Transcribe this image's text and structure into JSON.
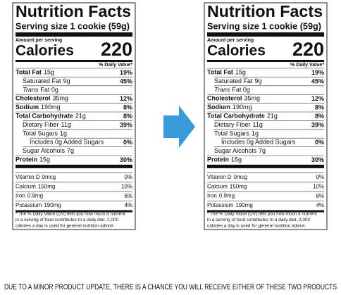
{
  "labels": [
    {
      "title": "Nutrition Facts",
      "serving": "Serving size 1 cookie (59g)",
      "amount_per_serving": "Amount per serving",
      "calories_label": "Calories",
      "calories": "220",
      "dv_header": "% Daily Value*",
      "nutrients": [
        {
          "name": "Total Fat",
          "amount": "15g",
          "dv": "19%",
          "sub": [
            {
              "name": "Saturated Fat",
              "amount": "9g",
              "dv": "45%"
            },
            {
              "italic": "Trans",
              "amount": "Fat 0g"
            }
          ]
        },
        {
          "name": "Cholesterol",
          "amount": "35mg",
          "dv": "12%"
        },
        {
          "name": "Sodium",
          "amount": "190mg",
          "dv": "8%"
        },
        {
          "name": "Total Carbohydrate",
          "amount": "21g",
          "dv": "8%",
          "sub": [
            {
              "name": "Dietary Fiber",
              "amount": "11g",
              "dv": "39%"
            },
            {
              "name": "Total Sugars",
              "amount": "1g",
              "sub": [
                {
                  "name": "Includes 0g Added Sugars",
                  "dv": "0%"
                }
              ]
            },
            {
              "name": "Sugar Alcohols",
              "amount": "7g"
            }
          ]
        },
        {
          "name": "Protein",
          "amount": "15g",
          "dv": "30%"
        }
      ],
      "micronutrients": [
        {
          "name": "Vitamin D",
          "amount": "0mcg",
          "dv": "0%"
        },
        {
          "name": "Calcium",
          "amount": "150mg",
          "dv": "10%"
        },
        {
          "name": "Iron",
          "amount": "0.9mg",
          "dv": "6%"
        },
        {
          "name": "Potassium",
          "amount": "190mg",
          "dv": "4%"
        }
      ],
      "footnote": [
        "* The % Daily Value (DV) tells you how much a nutrient",
        "in a serving of food contributes to a daily diet. 2,000",
        "calories a day is used for general nutrition advice."
      ]
    },
    {
      "title": "Nutrition Facts",
      "serving": "Serving size 1 cookie (59g)",
      "amount_per_serving": "Amount per serving",
      "calories_label": "Calories",
      "calories": "220",
      "dv_header": "% Daily Value*",
      "nutrients": [
        {
          "name": "Total Fat",
          "amount": "15g",
          "dv": "19%",
          "sub": [
            {
              "name": "Saturated Fat",
              "amount": "9g",
              "dv": "45%"
            },
            {
              "italic": "Trans",
              "amount": "Fat 0g"
            }
          ]
        },
        {
          "name": "Cholesterol",
          "amount": "35mg",
          "dv": "12%"
        },
        {
          "name": "Sodium",
          "amount": "190mg",
          "dv": "8%"
        },
        {
          "name": "Total Carbohydrate",
          "amount": "21g",
          "dv": "8%",
          "sub": [
            {
              "name": "Dietary Fiber",
              "amount": "11g",
              "dv": "39%"
            },
            {
              "name": "Total Sugars",
              "amount": "1g",
              "sub": [
                {
                  "name": "Includes 0g Added Sugars",
                  "dv": "0%"
                }
              ]
            },
            {
              "name": "Sugar Alcohols",
              "amount": "7g"
            }
          ]
        },
        {
          "name": "Protein",
          "amount": "15g",
          "dv": "30%"
        }
      ],
      "micronutrients": [
        {
          "name": "Vitamin D",
          "amount": "0mcg",
          "dv": "0%"
        },
        {
          "name": "Calcium",
          "amount": "150mg",
          "dv": "10%"
        },
        {
          "name": "Iron",
          "amount": "0.9mg",
          "dv": "6%"
        },
        {
          "name": "Potassium",
          "amount": "190mg",
          "dv": "4%"
        }
      ],
      "footnote": [
        "* The % Daily Value (DV) tells you how much a nutrient",
        "in a serving of food contributes to a daily diet. 2,000",
        "calories a day is used for general nutrition advice."
      ]
    }
  ],
  "caption": "DUE TO A MINOR PRODUCT UPDATE, THERE IS A CHANCE YOU WILL RECEIVE EITHER OF THESE TWO PRODUCTS"
}
